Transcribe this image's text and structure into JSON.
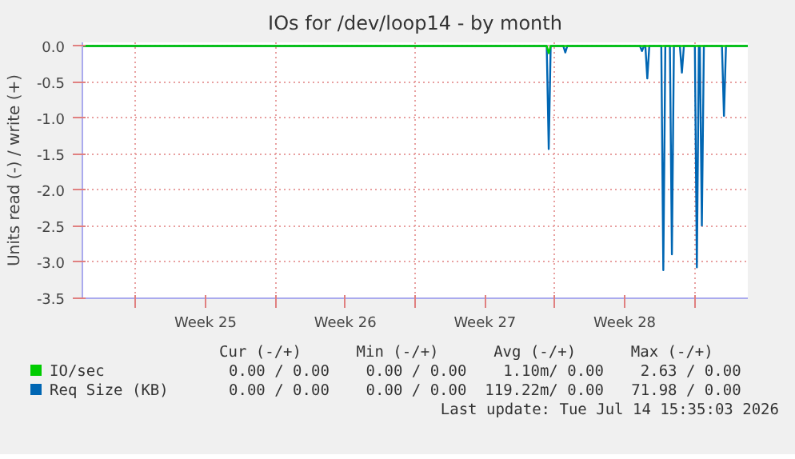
{
  "chart_data": {
    "type": "line",
    "title": "IOs for /dev/loop14 - by month",
    "ylabel": "Units read (-) / write (+)",
    "xlim": [
      "2026-06-12T08:00",
      "2026-07-15T16:00"
    ],
    "ylim": [
      -3.5,
      0.05
    ],
    "xticks": [
      {
        "value": "2026-06-15T00:00",
        "label": null
      },
      {
        "value": "2026-06-18T12:00",
        "label": "Week 25"
      },
      {
        "value": "2026-06-22T00:00",
        "label": null
      },
      {
        "value": "2026-06-25T12:00",
        "label": "Week 26"
      },
      {
        "value": "2026-06-29T00:00",
        "label": null
      },
      {
        "value": "2026-07-02T12:00",
        "label": "Week 27"
      },
      {
        "value": "2026-07-06T00:00",
        "label": null
      },
      {
        "value": "2026-07-09T12:00",
        "label": "Week 28"
      },
      {
        "value": "2026-07-13T00:00",
        "label": null
      }
    ],
    "yticks": [
      {
        "value": 0,
        "label": "0.0"
      },
      -0.5,
      {
        "value": -1,
        "label": "-1.0"
      },
      -1.5,
      {
        "value": -2,
        "label": "-2.0"
      },
      -2.5,
      {
        "value": -3,
        "label": "-3.0"
      },
      -3.5
    ],
    "grid": true,
    "legend": "bottom",
    "line_style": "solid",
    "marker": "none",
    "series": [
      {
        "name": "IO/sec",
        "color": "#00cc00",
        "x": [
          "2026-06-12T08:00",
          "2026-07-05T14:15",
          "2026-07-05T16:40",
          "2026-07-05T19:00",
          "2026-07-15T16:00"
        ],
        "values": [
          0,
          0,
          -0.1,
          0,
          0
        ]
      },
      {
        "name": "Req Size (KB)",
        "color": "#0066b3",
        "x": [
          "2026-06-12T08:00",
          "2026-07-05T14:15",
          "2026-07-05T16:40",
          "2026-07-05T19:00",
          "2026-07-06T10:10",
          "2026-07-06T12:35",
          "2026-07-06T15:00",
          "2026-07-10T06:20",
          "2026-07-10T08:45",
          "2026-07-10T11:10",
          "2026-07-10T12:50",
          "2026-07-10T15:10",
          "2026-07-10T17:35",
          "2026-07-11T08:00",
          "2026-07-11T10:25",
          "2026-07-11T12:50",
          "2026-07-11T18:20",
          "2026-07-11T20:45",
          "2026-07-11T23:10",
          "2026-07-12T06:20",
          "2026-07-12T08:45",
          "2026-07-12T11:10",
          "2026-07-13T00:20",
          "2026-07-13T02:45",
          "2026-07-13T05:10",
          "2026-07-13T06:20",
          "2026-07-13T08:45",
          "2026-07-13T11:10",
          "2026-07-14T08:55",
          "2026-07-14T11:20",
          "2026-07-14T13:45",
          "2026-07-15T16:00"
        ],
        "values": [
          0,
          0,
          -1.43,
          0,
          0,
          -0.09,
          0,
          0,
          -0.07,
          0,
          0,
          -0.45,
          0,
          0,
          -3.11,
          0,
          0,
          -2.89,
          0,
          0,
          -0.37,
          0,
          0,
          -3.07,
          0,
          0,
          -2.49,
          0,
          0,
          -0.97,
          0,
          0
        ]
      }
    ],
    "annotations": [
      "Cur (-/+)      Min (-/+)      Avg (-/+)      Max (-/+)",
      "0.00 / 0.00    0.00 / 0.00    1.10m/ 0.00    2.63 / 0.00",
      "0.00 / 0.00    0.00 / 0.00  119.22m/ 0.00   71.98 / 0.00",
      "Last update: Tue Jul 14 15:35:03 2026"
    ]
  }
}
